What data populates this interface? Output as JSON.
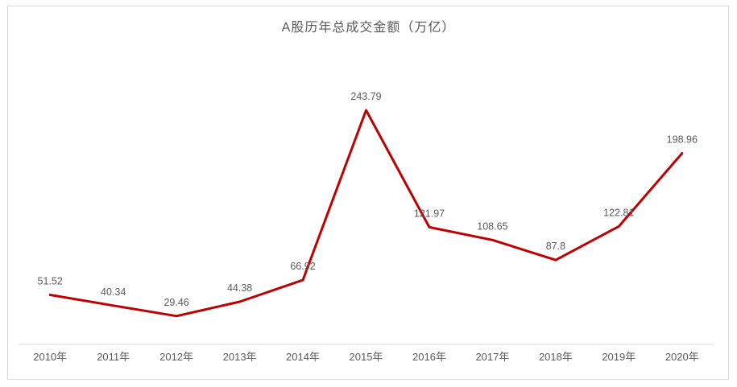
{
  "chart_data": {
    "type": "line",
    "title": "A股历年总成交金额（万亿）",
    "categories": [
      "2010年",
      "2011年",
      "2012年",
      "2013年",
      "2014年",
      "2015年",
      "2016年",
      "2017年",
      "2018年",
      "2019年",
      "2020年"
    ],
    "series": [
      {
        "name": "总成交金额",
        "values": [
          51.52,
          40.34,
          29.46,
          44.38,
          66.92,
          243.79,
          121.97,
          108.65,
          87.8,
          122.81,
          198.96
        ]
      }
    ],
    "data_labels_shown": true,
    "xlabel": "",
    "ylabel": "",
    "ylim": [
      0,
      260
    ],
    "grid": false,
    "legend_position": "none",
    "colors": {
      "line": "#c00000",
      "data_label_text": "#595959",
      "axis_line": "#d9d9d9",
      "tick_label_text": "#595959",
      "title_text": "#595959",
      "frame_border": "#d9d9d9",
      "background": "#ffffff"
    }
  }
}
